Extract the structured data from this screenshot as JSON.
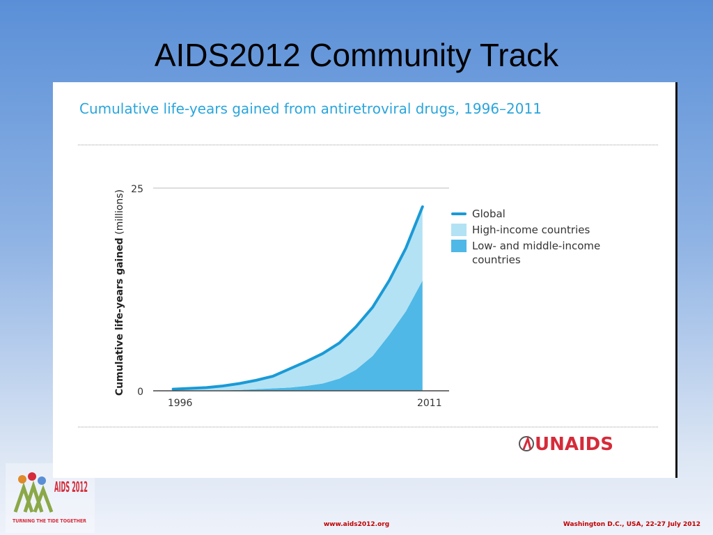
{
  "slide_title": "AIDS2012 Community Track",
  "chart_data": {
    "type": "area",
    "title": "Cumulative life-years gained from antiretroviral drugs, 1996–2011",
    "ylabel": "Cumulative life-years gained",
    "ylabel_unit": "(millions)",
    "x": [
      1996,
      1997,
      1998,
      1999,
      2000,
      2001,
      2002,
      2003,
      2004,
      2005,
      2006,
      2007,
      2008,
      2009,
      2010,
      2011
    ],
    "xlim": [
      1994.8,
      2012.6
    ],
    "xticks": [
      1996,
      2011
    ],
    "ylim": [
      0,
      25
    ],
    "yticks": [
      0,
      25
    ],
    "grid": true,
    "legend": "right",
    "series": [
      {
        "name": "Global",
        "color": "#1a9ad6",
        "kind": "line",
        "values": [
          0.2,
          0.3,
          0.4,
          0.6,
          0.9,
          1.3,
          1.8,
          2.7,
          3.6,
          4.6,
          5.9,
          7.9,
          10.3,
          13.6,
          17.6,
          22.7
        ]
      },
      {
        "name": "High-income countries",
        "color": "#b3e2f4",
        "kind": "area",
        "values": [
          0.2,
          0.3,
          0.4,
          0.55,
          0.8,
          1.1,
          1.5,
          2.3,
          3.0,
          3.7,
          4.4,
          5.3,
          6.0,
          6.7,
          7.8,
          9.1
        ]
      },
      {
        "name": "Low- and middle-income countries",
        "color": "#4fb8e6",
        "kind": "area",
        "values": [
          0,
          0,
          0,
          0.05,
          0.1,
          0.2,
          0.3,
          0.4,
          0.6,
          0.9,
          1.5,
          2.6,
          4.3,
          6.9,
          9.8,
          13.6
        ]
      }
    ]
  },
  "source_logo": "UNAIDS",
  "event_logo": {
    "name": "AIDS 2012",
    "tagline": "TURNING THE TIDE TOGETHER"
  },
  "footer": {
    "url": "www.aids2012.org",
    "place_date": "Washington D.C., USA, 22-27 July 2012"
  }
}
